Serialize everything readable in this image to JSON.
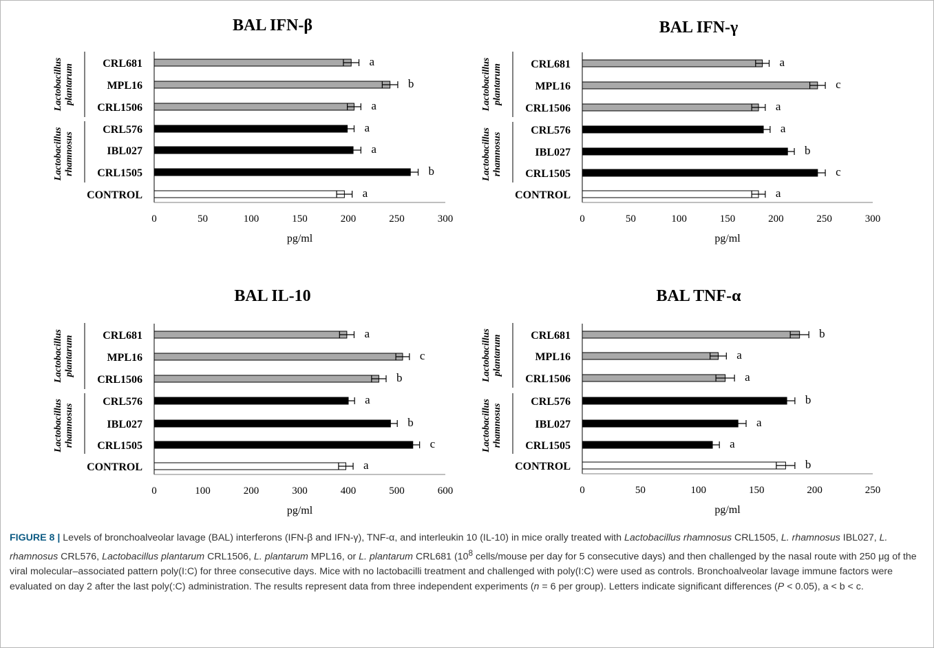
{
  "colors": {
    "plantarum": "#a9a9a9",
    "rhamnosus": "#000000",
    "control": "#ffffff",
    "caption_head": "#0d5b84"
  },
  "chart_data": [
    {
      "type": "bar",
      "title": "BAL IFN-β",
      "xlabel": "pg/ml",
      "categories": [
        "CRL681",
        "MPL16",
        "CRL1506",
        "CRL576",
        "IBL027",
        "CRL1505",
        "CONTROL"
      ],
      "values": [
        203,
        243,
        206,
        199,
        205,
        264,
        196
      ],
      "errors": [
        8,
        8,
        7,
        7,
        8,
        8,
        8
      ],
      "letters": [
        "a",
        "b",
        "a",
        "a",
        "a",
        "b",
        "a"
      ],
      "xlim": [
        0,
        300
      ],
      "xticks": [
        0,
        50,
        100,
        150,
        200,
        250,
        300
      ],
      "group_labels": [
        [
          "Lactobacillus",
          "plantarum"
        ],
        [
          "Lactobacillus",
          "rhamnosus"
        ]
      ]
    },
    {
      "type": "bar",
      "title": "BAL IFN-γ",
      "xlabel": "pg/ml",
      "categories": [
        "CRL681",
        "MPL16",
        "CRL1506",
        "CRL576",
        "IBL027",
        "CRL1505",
        "CONTROL"
      ],
      "values": [
        186,
        243,
        182,
        187,
        212,
        243,
        182
      ],
      "errors": [
        7,
        8,
        7,
        7,
        7,
        8,
        7
      ],
      "letters": [
        "a",
        "c",
        "a",
        "a",
        "b",
        "c",
        "a"
      ],
      "xlim": [
        0,
        300
      ],
      "xticks": [
        0,
        50,
        100,
        150,
        200,
        250,
        300
      ],
      "group_labels": [
        [
          "Lactobacillus",
          "plantarum"
        ],
        [
          "Lactobacillus",
          "rhamnosus"
        ]
      ]
    },
    {
      "type": "bar",
      "title": "BAL IL-10",
      "xlabel": "pg/ml",
      "categories": [
        "CRL681",
        "MPL16",
        "CRL1506",
        "CRL576",
        "IBL027",
        "CRL1505",
        "CONTROL"
      ],
      "values": [
        397,
        512,
        463,
        400,
        487,
        533,
        395
      ],
      "errors": [
        15,
        14,
        15,
        13,
        14,
        14,
        15
      ],
      "letters": [
        "a",
        "c",
        "b",
        "a",
        "b",
        "c",
        "a"
      ],
      "xlim": [
        0,
        600
      ],
      "xticks": [
        0,
        100,
        200,
        300,
        400,
        500,
        600
      ],
      "group_labels": [
        [
          "Lactobacillus",
          "plantarum"
        ],
        [
          "Lactobacillus",
          "rhamnosus"
        ]
      ]
    },
    {
      "type": "bar",
      "title": "BAL TNF-α",
      "xlabel": "pg/ml",
      "categories": [
        "CRL681",
        "MPL16",
        "CRL1506",
        "CRL576",
        "IBL027",
        "CRL1505",
        "CONTROL"
      ],
      "values": [
        187,
        117,
        123,
        176,
        134,
        112,
        175
      ],
      "errors": [
        8,
        7,
        8,
        7,
        7,
        6,
        8
      ],
      "letters": [
        "b",
        "a",
        "a",
        "b",
        "a",
        "a",
        "b"
      ],
      "xlim": [
        0,
        250
      ],
      "xticks": [
        0,
        50,
        100,
        150,
        200,
        250
      ],
      "group_labels": [
        [
          "Lactobacillus",
          "plantarum"
        ],
        [
          "Lactobacillus",
          "rhamnosus"
        ]
      ]
    }
  ],
  "caption": {
    "label": "FIGURE 8 |",
    "p1": " Levels of bronchoalveolar lavage (BAL) interferons (IFN-β and IFN-γ), TNF-α, and interleukin 10 (IL-10) in mice orally treated with ",
    "i1": "Lactobacillus rhamnosus",
    "p2": " CRL1505, ",
    "i2": "L. rhamnosus",
    "p3": " IBL027, ",
    "i3": "L. rhamnosus",
    "p4": " CRL576, ",
    "i4": "Lactobacillus plantarum",
    "p5": " CRL1506, ",
    "i5": "L. plantarum",
    "p6": " MPL16, or ",
    "i6": "L. plantarum",
    "p7": " CRL681 (10",
    "sup": "8",
    "p8": " cells/mouse per day for 5 consecutive days) and then challenged by the nasal route with 250 μg of the viral molecular–associated pattern poly(I:C) for three consecutive days. Mice with no lactobacilli treatment and challenged with poly(I:C) were used as controls. Bronchoalveolar lavage immune factors were evaluated on day 2 after the last poly(:C) administration. The results represent data from three independent experiments (",
    "i7": "n",
    "p9": " = 6 per group). Letters indicate significant differences (",
    "i8": "P",
    "p10": " < 0.05), a < b < c."
  }
}
